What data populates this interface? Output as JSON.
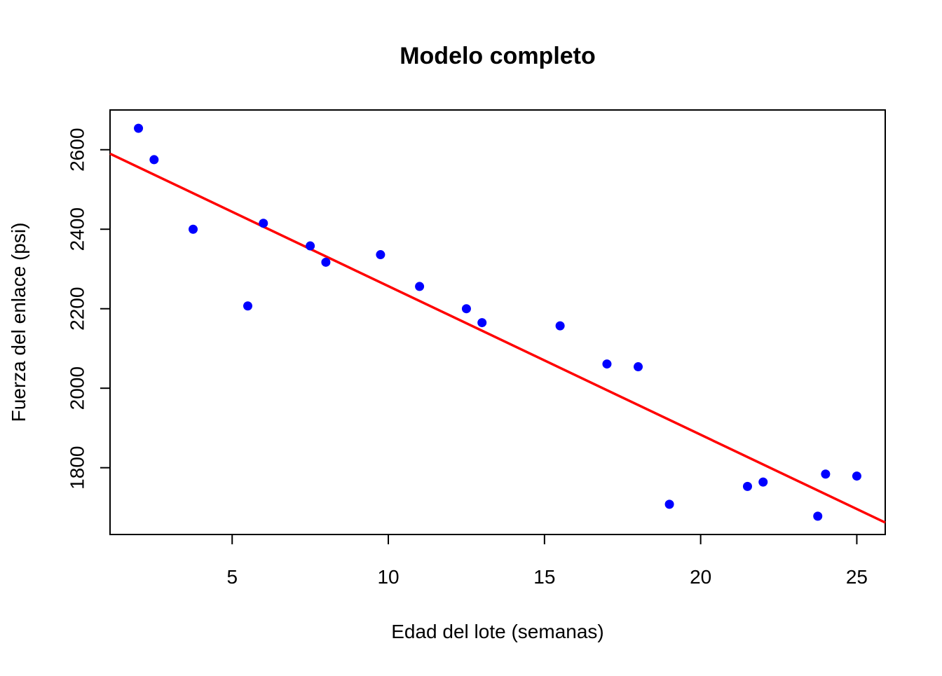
{
  "chart_data": {
    "type": "scatter",
    "title": "Modelo completo",
    "xlabel": "Edad del lote (semanas)",
    "ylabel": "Fuerza del enlace (psi)",
    "xlim": [
      1.09,
      25.91
    ],
    "ylim": [
      1632,
      2700
    ],
    "x_ticks": [
      5,
      10,
      15,
      20,
      25
    ],
    "x_tick_labels": [
      "5",
      "10",
      "15",
      "20",
      "25"
    ],
    "y_ticks": [
      1800,
      2000,
      2200,
      2400,
      2600
    ],
    "y_tick_labels": [
      "1800",
      "2000",
      "2200",
      "2400",
      "2600"
    ],
    "grid": false,
    "legend": "none",
    "series": [
      {
        "type": "scatter",
        "color": "#0000FF",
        "points": [
          {
            "x": 2.0,
            "y": 2654
          },
          {
            "x": 2.5,
            "y": 2575
          },
          {
            "x": 3.75,
            "y": 2400
          },
          {
            "x": 5.5,
            "y": 2207
          },
          {
            "x": 6.0,
            "y": 2415
          },
          {
            "x": 7.5,
            "y": 2358
          },
          {
            "x": 8.0,
            "y": 2317
          },
          {
            "x": 9.75,
            "y": 2336
          },
          {
            "x": 11.0,
            "y": 2256
          },
          {
            "x": 12.5,
            "y": 2200
          },
          {
            "x": 13.0,
            "y": 2165
          },
          {
            "x": 15.5,
            "y": 2157
          },
          {
            "x": 17.0,
            "y": 2061
          },
          {
            "x": 18.0,
            "y": 2054
          },
          {
            "x": 19.0,
            "y": 1708
          },
          {
            "x": 21.5,
            "y": 1753
          },
          {
            "x": 22.0,
            "y": 1764
          },
          {
            "x": 23.75,
            "y": 1678
          },
          {
            "x": 24.0,
            "y": 1784
          },
          {
            "x": 25.0,
            "y": 1779
          }
        ]
      },
      {
        "type": "line",
        "color": "#FF0000",
        "points": [
          {
            "x": 1.09,
            "y": 2590
          },
          {
            "x": 25.91,
            "y": 1662
          }
        ]
      }
    ]
  }
}
